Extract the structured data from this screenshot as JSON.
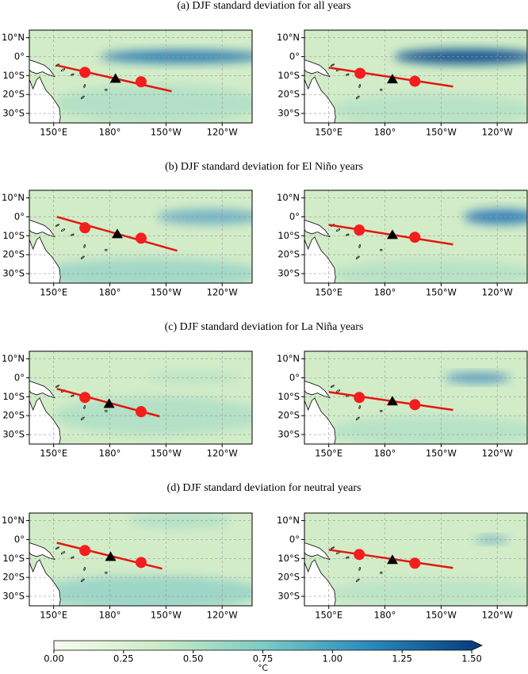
{
  "figure": {
    "rows": [
      {
        "title": "(a) DJF standard deviation for all years"
      },
      {
        "title": "(b) DJF standard deviation for El Niño years"
      },
      {
        "title": "(c) DJF standard deviation for La Niña years"
      },
      {
        "title": "(d) DJF standard deviation for neutral years"
      }
    ],
    "lonlim": [
      137,
      256
    ],
    "latlim": [
      -35,
      14
    ],
    "lat_ticks": [
      {
        "value": 10,
        "label": "10°N"
      },
      {
        "value": 0,
        "label": "0°"
      },
      {
        "value": -10,
        "label": "10°S"
      },
      {
        "value": -20,
        "label": "20°S"
      },
      {
        "value": -30,
        "label": "30°S"
      }
    ],
    "lon_ticks": [
      {
        "value": 150,
        "label": "150°E"
      },
      {
        "value": 180,
        "label": "180°"
      },
      {
        "value": 210,
        "label": "150°W"
      },
      {
        "value": 240,
        "label": "120°W"
      }
    ],
    "colorbar": {
      "lim": [
        0,
        1.5
      ],
      "ticks": [
        {
          "value": 0,
          "label": "0.00"
        },
        {
          "value": 0.25,
          "label": "0.25"
        },
        {
          "value": 0.5,
          "label": "0.50"
        },
        {
          "value": 0.75,
          "label": "0.75"
        },
        {
          "value": 1,
          "label": "1.00"
        },
        {
          "value": 1.25,
          "label": "1.25"
        },
        {
          "value": 1.5,
          "label": "1.50"
        }
      ],
      "label": "°C",
      "colors": [
        "#f7fcf0",
        "#ccebc5",
        "#7bccc4",
        "#2b8cbe",
        "#084081"
      ]
    }
  }
}
